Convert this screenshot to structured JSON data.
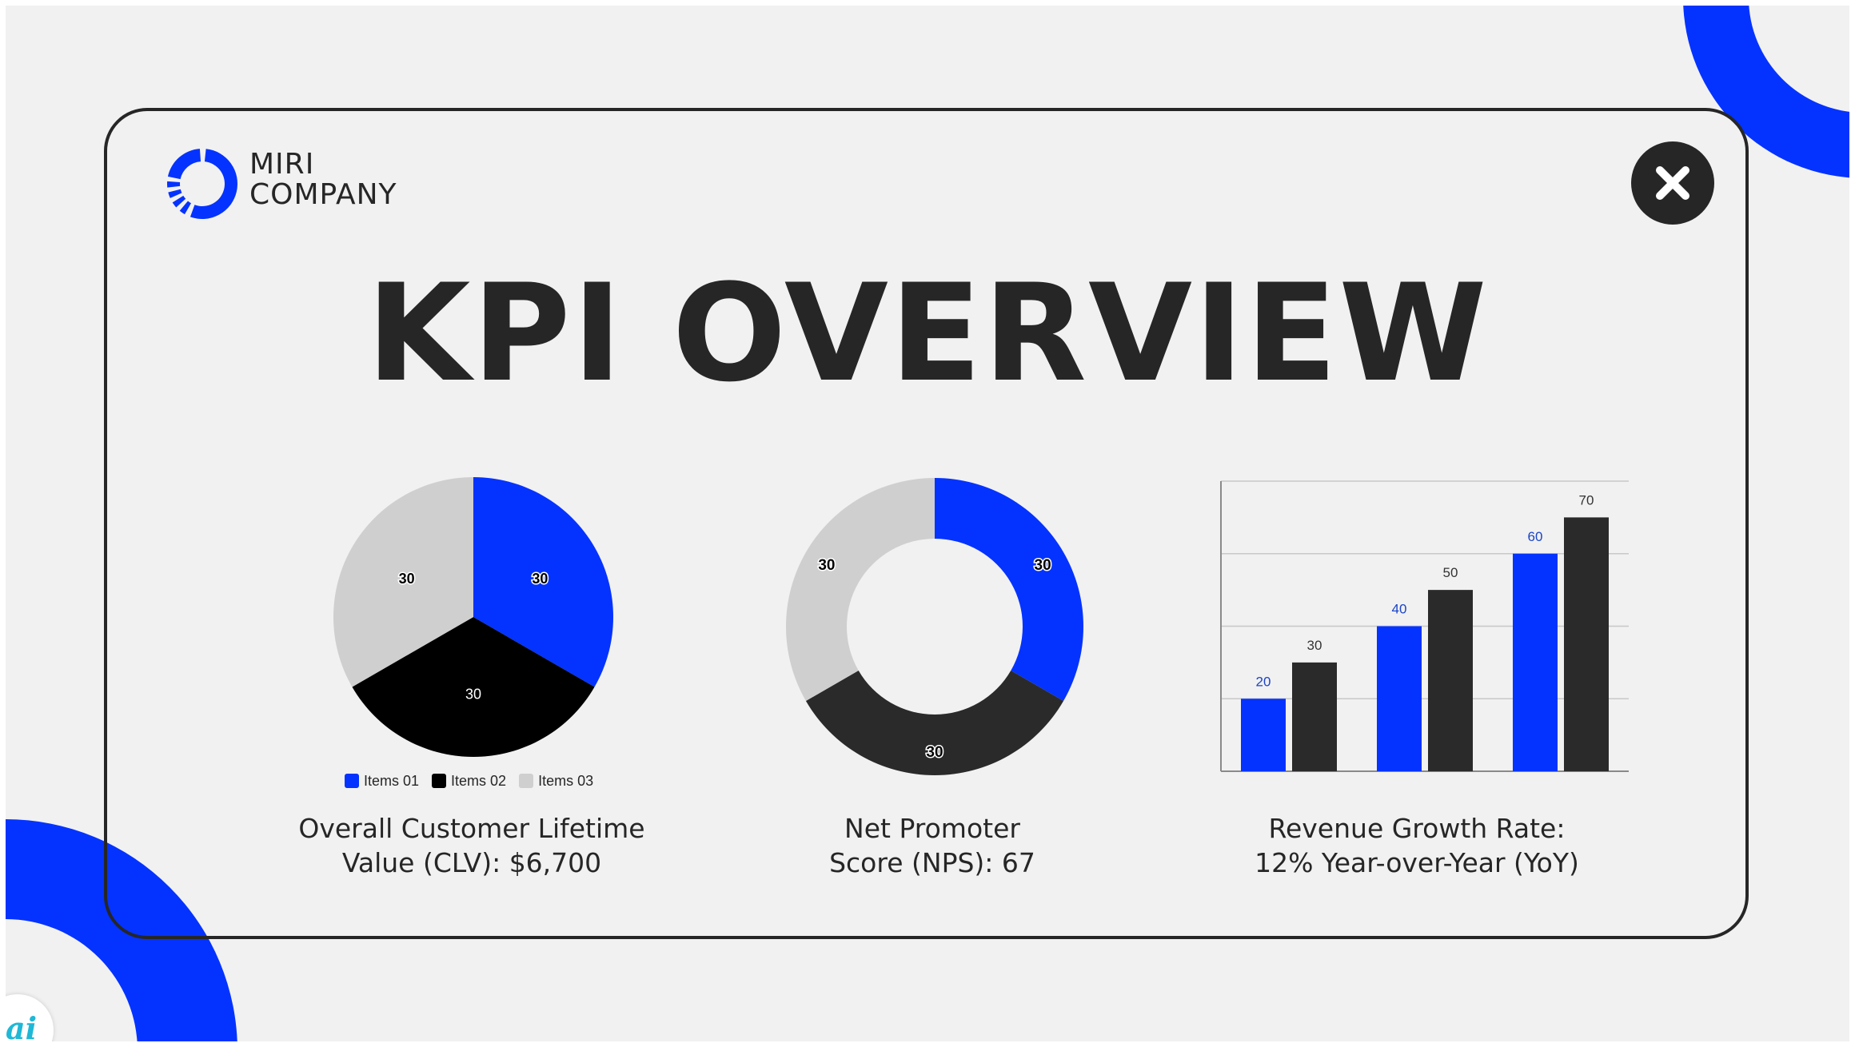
{
  "brand": {
    "line1": "MIRI",
    "line2": "COMPANY"
  },
  "title": "KPI OVERVIEW",
  "colors": {
    "blue": "#0433ff",
    "dark": "#2a2a2a",
    "black": "#000000",
    "light": "#cfcfcf",
    "bg": "#f1f1f1"
  },
  "icons": {
    "close": "close-icon",
    "logo": "logo-icon",
    "badge": "app-badge-icon"
  },
  "badge_text": "ai",
  "legend": [
    "Items 01",
    "Items 02",
    "Items 03"
  ],
  "chart_data": [
    {
      "type": "pie",
      "categories": [
        "Items 01",
        "Items 02",
        "Items 03"
      ],
      "values": [
        30,
        30,
        30
      ],
      "colors": [
        "#0433ff",
        "#000000",
        "#cfcfcf"
      ],
      "data_labels": [
        "30",
        "30",
        "30"
      ],
      "legend_placement": "bottom",
      "caption": [
        "Overall Customer Lifetime",
        "Value (CLV): $6,700"
      ]
    },
    {
      "type": "pie",
      "donut": true,
      "values": [
        30,
        30,
        30
      ],
      "colors": [
        "#0433ff",
        "#2a2a2a",
        "#cfcfcf"
      ],
      "data_labels": [
        "30",
        "30",
        "30"
      ],
      "caption": [
        "Net Promoter",
        "Score (NPS): 67"
      ]
    },
    {
      "type": "bar",
      "categories": [
        "",
        "",
        ""
      ],
      "series": [
        {
          "values": [
            20,
            40,
            60
          ],
          "color": "#0433ff"
        },
        {
          "values": [
            30,
            50,
            70
          ],
          "color": "#2a2a2a"
        }
      ],
      "ylim": [
        0,
        80
      ],
      "grid": true,
      "caption": [
        "Revenue Growth Rate:",
        "12% Year-over-Year (YoY)"
      ]
    }
  ]
}
